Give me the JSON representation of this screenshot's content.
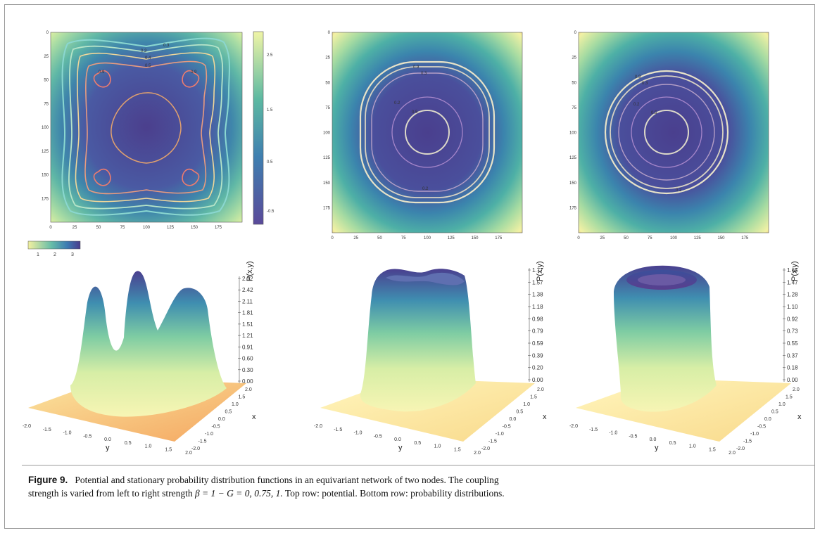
{
  "caption": {
    "label": "Figure 9.",
    "line1": "Potential and stationary probability distribution functions in an equivariant network of two nodes. The coupling",
    "line2_pre": "strength is varied from left to right strength ",
    "formula": "β = 1 − G = 0, 0.75, 1.",
    "line2_post": " Top row: potential. Bottom row: probability distributions."
  },
  "top_axis_ticks": {
    "x": [
      "0",
      "25",
      "50",
      "75",
      "100",
      "125",
      "150",
      "175"
    ],
    "y": [
      "0",
      "25",
      "50",
      "75",
      "100",
      "125",
      "150",
      "175"
    ]
  },
  "top_colorbar_ticks": [
    "2.5",
    "1.5",
    "0.5",
    "-0.5"
  ],
  "small_colorbar_ticks": [
    "1",
    "2",
    "3"
  ],
  "contour_labels": {
    "left": [
      "0.9",
      "0.5",
      "0.4",
      "0.3",
      "0.2"
    ],
    "mid": [
      "0.9",
      "0.3",
      "0.2",
      "0.5",
      "0.2"
    ],
    "right": [
      "0.9",
      "0.3",
      "0.2",
      "0.5",
      "0.2"
    ]
  },
  "surface_axes": {
    "x_label": "x",
    "y_label": "y",
    "z_label": "P(x,y)",
    "xy_ticks": [
      "-2.0",
      "-1.5",
      "-1.0",
      "-0.5",
      "0.0",
      "0.5",
      "1.0",
      "1.5",
      "2.0"
    ],
    "z_ticks_left": [
      "2.72",
      "2.42",
      "2.11",
      "1.81",
      "1.51",
      "1.21",
      "0.91",
      "0.60",
      "0.30",
      "0.00"
    ],
    "z_ticks_mid": [
      "1.77",
      "1.57",
      "1.38",
      "1.18",
      "0.98",
      "0.79",
      "0.59",
      "0.39",
      "0.20",
      "0.00"
    ],
    "z_ticks_right": [
      "1.65",
      "1.47",
      "1.28",
      "1.10",
      "0.92",
      "0.73",
      "0.55",
      "0.37",
      "0.18",
      "0.00"
    ]
  },
  "colors": {
    "viridis_dark": "#4a3f8f",
    "teal": "#3b8fa8",
    "green": "#7fcc9a",
    "yellow": "#f1f0a2",
    "orange": "#f4b36b"
  }
}
